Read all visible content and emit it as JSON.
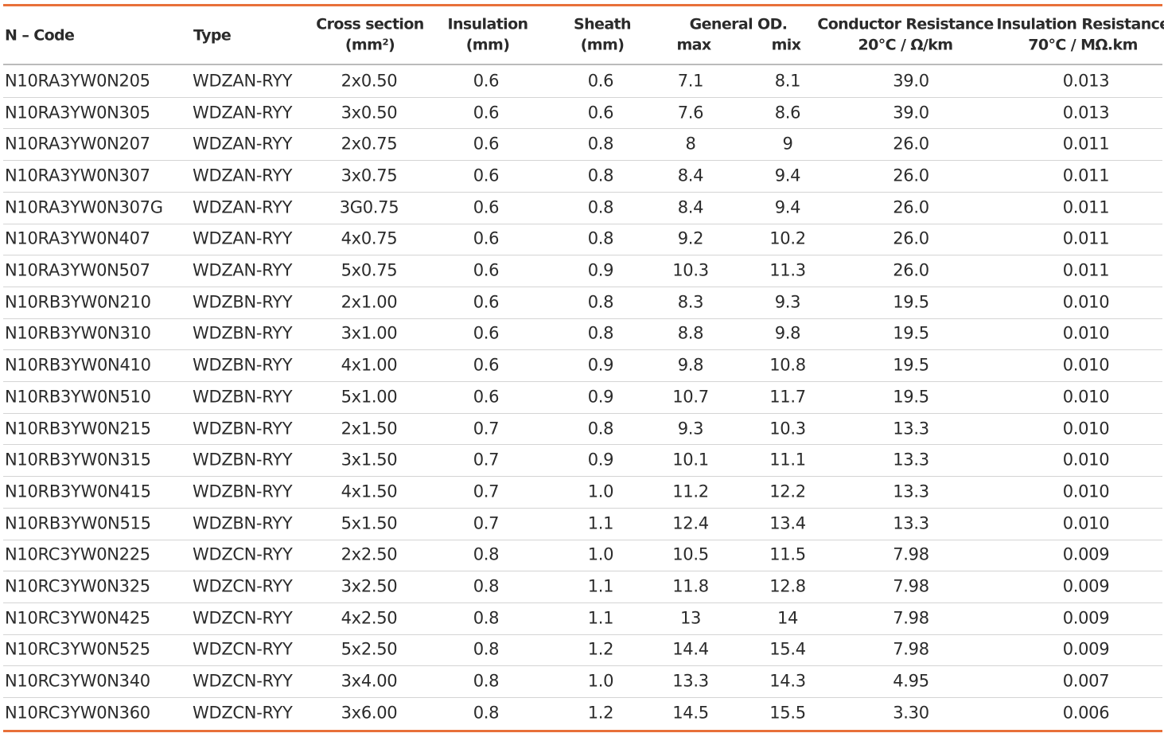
{
  "header": {
    "code": "N – Code",
    "type": "Type",
    "cross_section": [
      "Cross section",
      "(mm²)"
    ],
    "insulation": [
      "Insulation",
      "(mm)"
    ],
    "sheath": [
      "Sheath",
      "(mm)"
    ],
    "general_od": {
      "title": "General OD.",
      "sub": [
        "max",
        "mix"
      ]
    },
    "conductor_resistance": [
      "Conductor Resistance",
      "20°C / Ω/km"
    ],
    "insulation_resistance": [
      "Insulation Resistance",
      "70°C / MΩ.km"
    ]
  },
  "table": {
    "rows": [
      [
        "N10RA3YW0N205",
        "WDZAN-RYY",
        "2x0.50",
        "0.6",
        "0.6",
        "7.1",
        "8.1",
        "39.0",
        "0.013"
      ],
      [
        "N10RA3YW0N305",
        "WDZAN-RYY",
        "3x0.50",
        "0.6",
        "0.6",
        "7.6",
        "8.6",
        "39.0",
        "0.013"
      ],
      [
        "N10RA3YW0N207",
        "WDZAN-RYY",
        "2x0.75",
        "0.6",
        "0.8",
        "8",
        "9",
        "26.0",
        "0.011"
      ],
      [
        "N10RA3YW0N307",
        "WDZAN-RYY",
        "3x0.75",
        "0.6",
        "0.8",
        "8.4",
        "9.4",
        "26.0",
        "0.011"
      ],
      [
        "N10RA3YW0N307G",
        "WDZAN-RYY",
        "3G0.75",
        "0.6",
        "0.8",
        "8.4",
        "9.4",
        "26.0",
        "0.011"
      ],
      [
        "N10RA3YW0N407",
        "WDZAN-RYY",
        "4x0.75",
        "0.6",
        "0.8",
        "9.2",
        "10.2",
        "26.0",
        "0.011"
      ],
      [
        "N10RA3YW0N507",
        "WDZAN-RYY",
        "5x0.75",
        "0.6",
        "0.9",
        "10.3",
        "11.3",
        "26.0",
        "0.011"
      ],
      [
        "N10RB3YW0N210",
        "WDZBN-RYY",
        "2x1.00",
        "0.6",
        "0.8",
        "8.3",
        "9.3",
        "19.5",
        "0.010"
      ],
      [
        "N10RB3YW0N310",
        "WDZBN-RYY",
        "3x1.00",
        "0.6",
        "0.8",
        "8.8",
        "9.8",
        "19.5",
        "0.010"
      ],
      [
        "N10RB3YW0N410",
        "WDZBN-RYY",
        "4x1.00",
        "0.6",
        "0.9",
        "9.8",
        "10.8",
        "19.5",
        "0.010"
      ],
      [
        "N10RB3YW0N510",
        "WDZBN-RYY",
        "5x1.00",
        "0.6",
        "0.9",
        "10.7",
        "11.7",
        "19.5",
        "0.010"
      ],
      [
        "N10RB3YW0N215",
        "WDZBN-RYY",
        "2x1.50",
        "0.7",
        "0.8",
        "9.3",
        "10.3",
        "13.3",
        "0.010"
      ],
      [
        "N10RB3YW0N315",
        "WDZBN-RYY",
        "3x1.50",
        "0.7",
        "0.9",
        "10.1",
        "11.1",
        "13.3",
        "0.010"
      ],
      [
        "N10RB3YW0N415",
        "WDZBN-RYY",
        "4x1.50",
        "0.7",
        "1.0",
        "11.2",
        "12.2",
        "13.3",
        "0.010"
      ],
      [
        "N10RB3YW0N515",
        "WDZBN-RYY",
        "5x1.50",
        "0.7",
        "1.1",
        "12.4",
        "13.4",
        "13.3",
        "0.010"
      ],
      [
        "N10RC3YW0N225",
        "WDZCN-RYY",
        "2x2.50",
        "0.8",
        "1.0",
        "10.5",
        "11.5",
        "7.98",
        "0.009"
      ],
      [
        "N10RC3YW0N325",
        "WDZCN-RYY",
        "3x2.50",
        "0.8",
        "1.1",
        "11.8",
        "12.8",
        "7.98",
        "0.009"
      ],
      [
        "N10RC3YW0N425",
        "WDZCN-RYY",
        "4x2.50",
        "0.8",
        "1.1",
        "13",
        "14",
        "7.98",
        "0.009"
      ],
      [
        "N10RC3YW0N525",
        "WDZCN-RYY",
        "5x2.50",
        "0.8",
        "1.2",
        "14.4",
        "15.4",
        "7.98",
        "0.009"
      ],
      [
        "N10RC3YW0N340",
        "WDZCN-RYY",
        "3x4.00",
        "0.8",
        "1.0",
        "13.3",
        "14.3",
        "4.95",
        "0.007"
      ],
      [
        "N10RC3YW0N360",
        "WDZCN-RYY",
        "3x6.00",
        "0.8",
        "1.2",
        "14.5",
        "15.5",
        "3.30",
        "0.006"
      ]
    ]
  }
}
